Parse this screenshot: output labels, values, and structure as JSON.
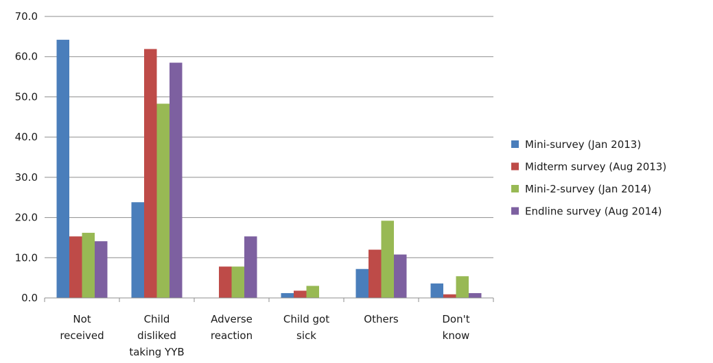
{
  "chart_data": {
    "type": "bar",
    "categories": [
      [
        "Not",
        "received"
      ],
      [
        "Child",
        "disliked",
        "taking YYB"
      ],
      [
        "Adverse",
        "reaction"
      ],
      [
        "Child got",
        "sick"
      ],
      [
        "Others"
      ],
      [
        "Don't",
        "know"
      ]
    ],
    "series": [
      {
        "name": "Mini-survey (Jan 2013)",
        "color": "#4a7ebb",
        "values": [
          64.2,
          23.8,
          0.0,
          1.2,
          7.2,
          3.6
        ]
      },
      {
        "name": "Midterm survey (Aug 2013)",
        "color": "#be4b48",
        "values": [
          15.3,
          61.9,
          7.8,
          1.8,
          12.0,
          0.9
        ]
      },
      {
        "name": "Mini-2-survey (Jan 2014)",
        "color": "#98b954",
        "values": [
          16.2,
          48.3,
          7.8,
          3.0,
          19.2,
          5.4
        ]
      },
      {
        "name": "Endline survey (Aug 2014)",
        "color": "#7d60a0",
        "values": [
          14.1,
          58.5,
          15.3,
          0.0,
          10.8,
          1.2
        ]
      }
    ],
    "yticks": [
      "0.0",
      "10.0",
      "20.0",
      "30.0",
      "40.0",
      "50.0",
      "60.0",
      "70.0"
    ],
    "ylim": [
      0,
      70
    ],
    "grid": true,
    "legend_position": "right",
    "title": "",
    "xlabel": "",
    "ylabel": ""
  }
}
